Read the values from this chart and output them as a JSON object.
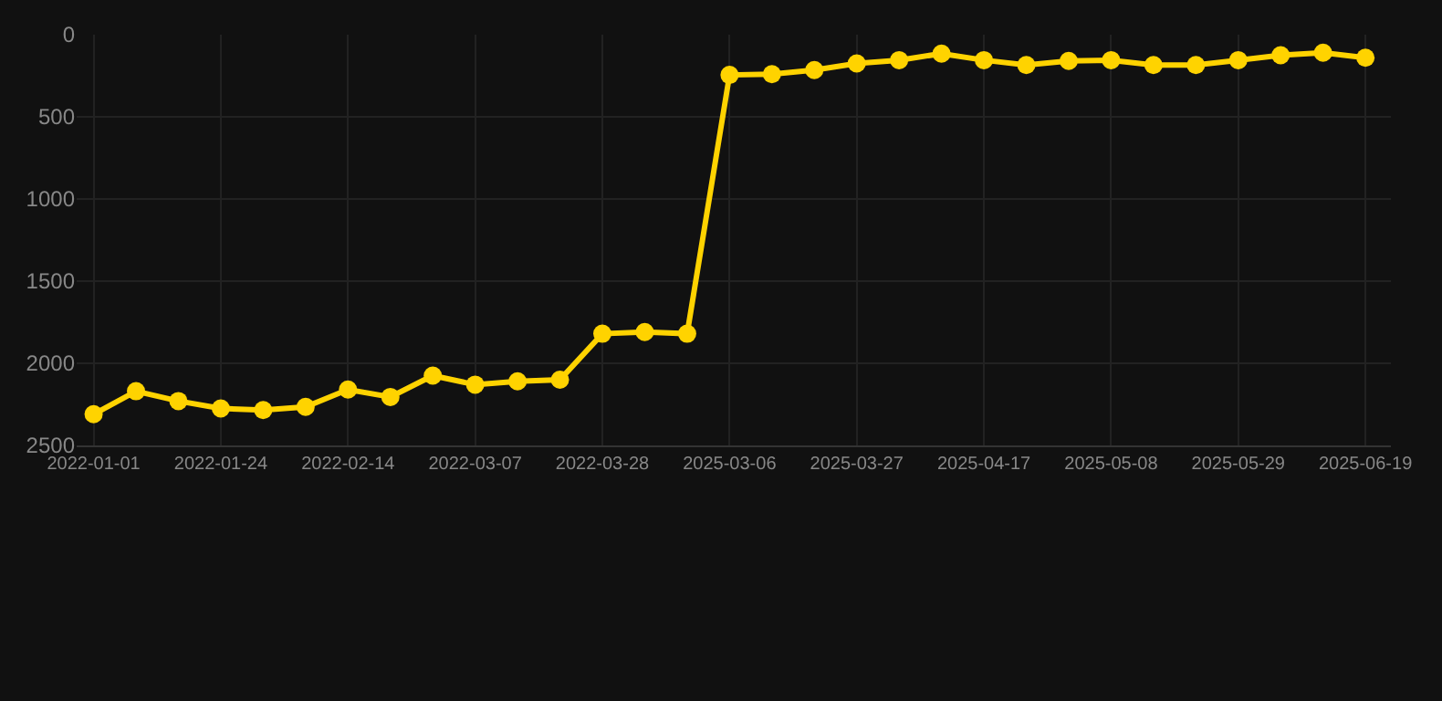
{
  "chart_data": {
    "type": "line",
    "categories": [
      "2022-01-01",
      null,
      null,
      "2022-01-24",
      null,
      null,
      "2022-02-14",
      null,
      null,
      "2022-03-07",
      null,
      null,
      "2022-03-28",
      null,
      null,
      "2025-03-06",
      null,
      null,
      "2025-03-27",
      null,
      null,
      "2025-04-17",
      null,
      null,
      "2025-05-08",
      null,
      null,
      "2025-05-29",
      null,
      null,
      "2025-06-19"
    ],
    "series": [
      {
        "color": "#ffd300",
        "values": [
          2310,
          2170,
          2230,
          2275,
          2285,
          2265,
          2160,
          2205,
          2075,
          2130,
          2110,
          2100,
          1820,
          1810,
          1820,
          245,
          240,
          215,
          175,
          155,
          115,
          155,
          185,
          160,
          155,
          185,
          185,
          155,
          125,
          110,
          140
        ]
      }
    ],
    "ylim": [
      2500,
      0
    ],
    "yticks": [
      0,
      500,
      1000,
      1500,
      2000,
      2500
    ],
    "grid": true,
    "marker": "circle",
    "line_style": "solid"
  }
}
